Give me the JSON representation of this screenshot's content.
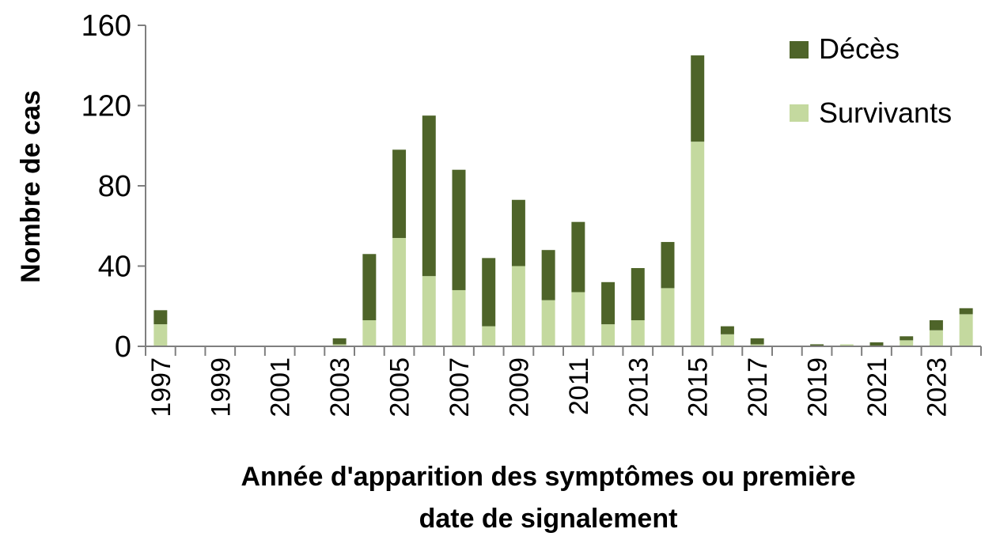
{
  "chart_data": {
    "type": "bar",
    "stacked": true,
    "title": "",
    "ylabel": "Nombre de cas",
    "xlabel_lines": [
      "Année d'apparition des symptômes ou première",
      "date de signalement"
    ],
    "ylim": [
      0,
      160
    ],
    "yticks": [
      0,
      40,
      80,
      120,
      160
    ],
    "categories": [
      1997,
      1998,
      1999,
      2000,
      2001,
      2002,
      2003,
      2004,
      2005,
      2006,
      2007,
      2008,
      2009,
      2010,
      2011,
      2012,
      2013,
      2014,
      2015,
      2016,
      2017,
      2018,
      2019,
      2020,
      2021,
      2022,
      2023,
      2024
    ],
    "xtick_labels": [
      "1997",
      "",
      "1999",
      "",
      "2001",
      "",
      "2003",
      "",
      "2005",
      "",
      "2007",
      "",
      "2009",
      "",
      "2011",
      "",
      "2013",
      "",
      "2015",
      "",
      "2017",
      "",
      "2019",
      "",
      "2021",
      "",
      "2023",
      ""
    ],
    "series": [
      {
        "name": "Survivants",
        "color": "#c4d99f",
        "values": [
          11,
          0,
          0,
          0,
          0,
          0,
          1,
          13,
          54,
          35,
          28,
          10,
          40,
          23,
          27,
          11,
          13,
          29,
          102,
          6,
          1,
          0,
          0,
          1,
          0,
          3,
          8,
          16
        ]
      },
      {
        "name": "Décès",
        "color": "#4e6429",
        "values": [
          7,
          0,
          0,
          0,
          0,
          0,
          3,
          33,
          44,
          80,
          60,
          34,
          33,
          25,
          35,
          21,
          26,
          23,
          43,
          4,
          3,
          0,
          1,
          0,
          2,
          2,
          5,
          3
        ]
      }
    ],
    "legend": {
      "position": "top-right",
      "order": [
        "Décès",
        "Survivants"
      ]
    },
    "grid": false
  }
}
